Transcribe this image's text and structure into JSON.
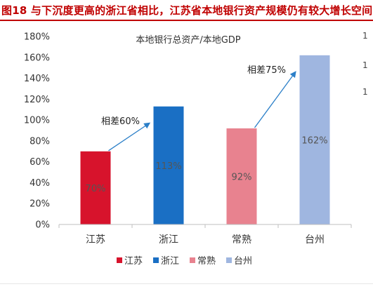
{
  "figure": {
    "title": "图18  与下沉度更高的浙江省相比，江苏省本地银行资产规模仍有较大增长空间"
  },
  "side_marks": [
    "1",
    "1",
    "1"
  ],
  "colors": {
    "title": "#c00000",
    "jiangsu": "#d7132c",
    "zhejiang": "#1a6fc4",
    "changshu": "#e8828f",
    "taizhou": "#9fb6e0",
    "arrow": "#2b7fc8"
  },
  "chart_data": {
    "type": "bar",
    "title": "本地银行总资产/本地GDP",
    "categories": [
      "江苏",
      "浙江",
      "常熟",
      "台州"
    ],
    "values": [
      70,
      113,
      92,
      162
    ],
    "data_labels": [
      "70%",
      "113%",
      "92%",
      "162%"
    ],
    "ylim": [
      0,
      180
    ],
    "yticks": [
      0,
      20,
      40,
      60,
      80,
      100,
      120,
      140,
      160,
      180
    ],
    "ytick_labels": [
      "0%",
      "20%",
      "40%",
      "60%",
      "80%",
      "100%",
      "120%",
      "140%",
      "160%",
      "180%"
    ],
    "grid": false,
    "legend": {
      "position": "bottom",
      "entries": [
        "江苏",
        "浙江",
        "常熟",
        "台州"
      ]
    },
    "annotations": [
      {
        "text": "相差60%",
        "from_category": "江苏",
        "to_category": "浙江",
        "from_value": 70,
        "to_value": 113
      },
      {
        "text": "相差75%",
        "from_category": "常熟",
        "to_category": "台州",
        "from_value": 92,
        "to_value": 162
      }
    ]
  }
}
